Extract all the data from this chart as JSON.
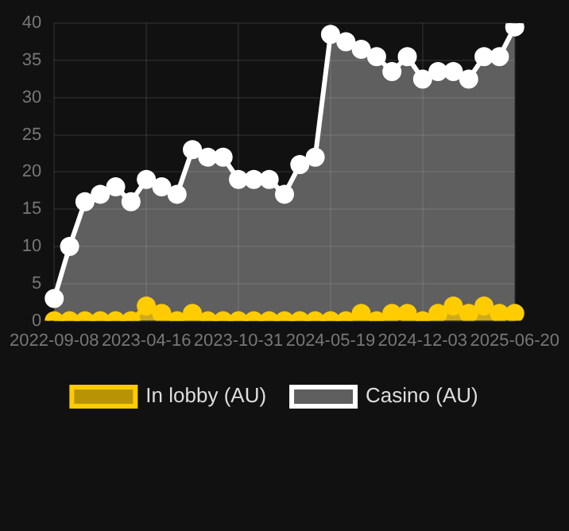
{
  "chart_data": {
    "type": "area",
    "categories": [
      "2022-09-08",
      null,
      null,
      null,
      null,
      null,
      "2023-04-16",
      null,
      null,
      null,
      null,
      null,
      "2023-10-31",
      null,
      null,
      null,
      null,
      null,
      "2024-05-19",
      null,
      null,
      null,
      null,
      null,
      "2024-12-03",
      null,
      null,
      null,
      null,
      null,
      "2025-06-20"
    ],
    "series": [
      {
        "name": "In lobby (AU)",
        "color": "#ffcc00",
        "values": [
          0,
          0,
          0,
          0,
          0,
          0,
          2,
          1,
          0,
          1,
          0,
          0,
          0,
          0,
          0,
          0,
          0,
          0,
          0,
          0,
          1,
          0,
          1,
          1,
          0,
          1,
          2,
          1,
          2,
          1,
          1
        ]
      },
      {
        "name": "Casino (AU)",
        "color": "#ffffff",
        "values": [
          3,
          10,
          16,
          17,
          18,
          16,
          19,
          18,
          17,
          23,
          22,
          22,
          19,
          19,
          19,
          17,
          21,
          22,
          38.5,
          37.5,
          36.5,
          35.5,
          33.5,
          35.5,
          32.5,
          33.5,
          33.5,
          32.5,
          35.5,
          35.5,
          39.5
        ]
      }
    ],
    "ylim": [
      0,
      40
    ],
    "yticks": [
      0,
      5,
      10,
      15,
      20,
      25,
      30,
      35,
      40
    ],
    "grid": true,
    "legend": "bottom",
    "marker": "circle"
  }
}
